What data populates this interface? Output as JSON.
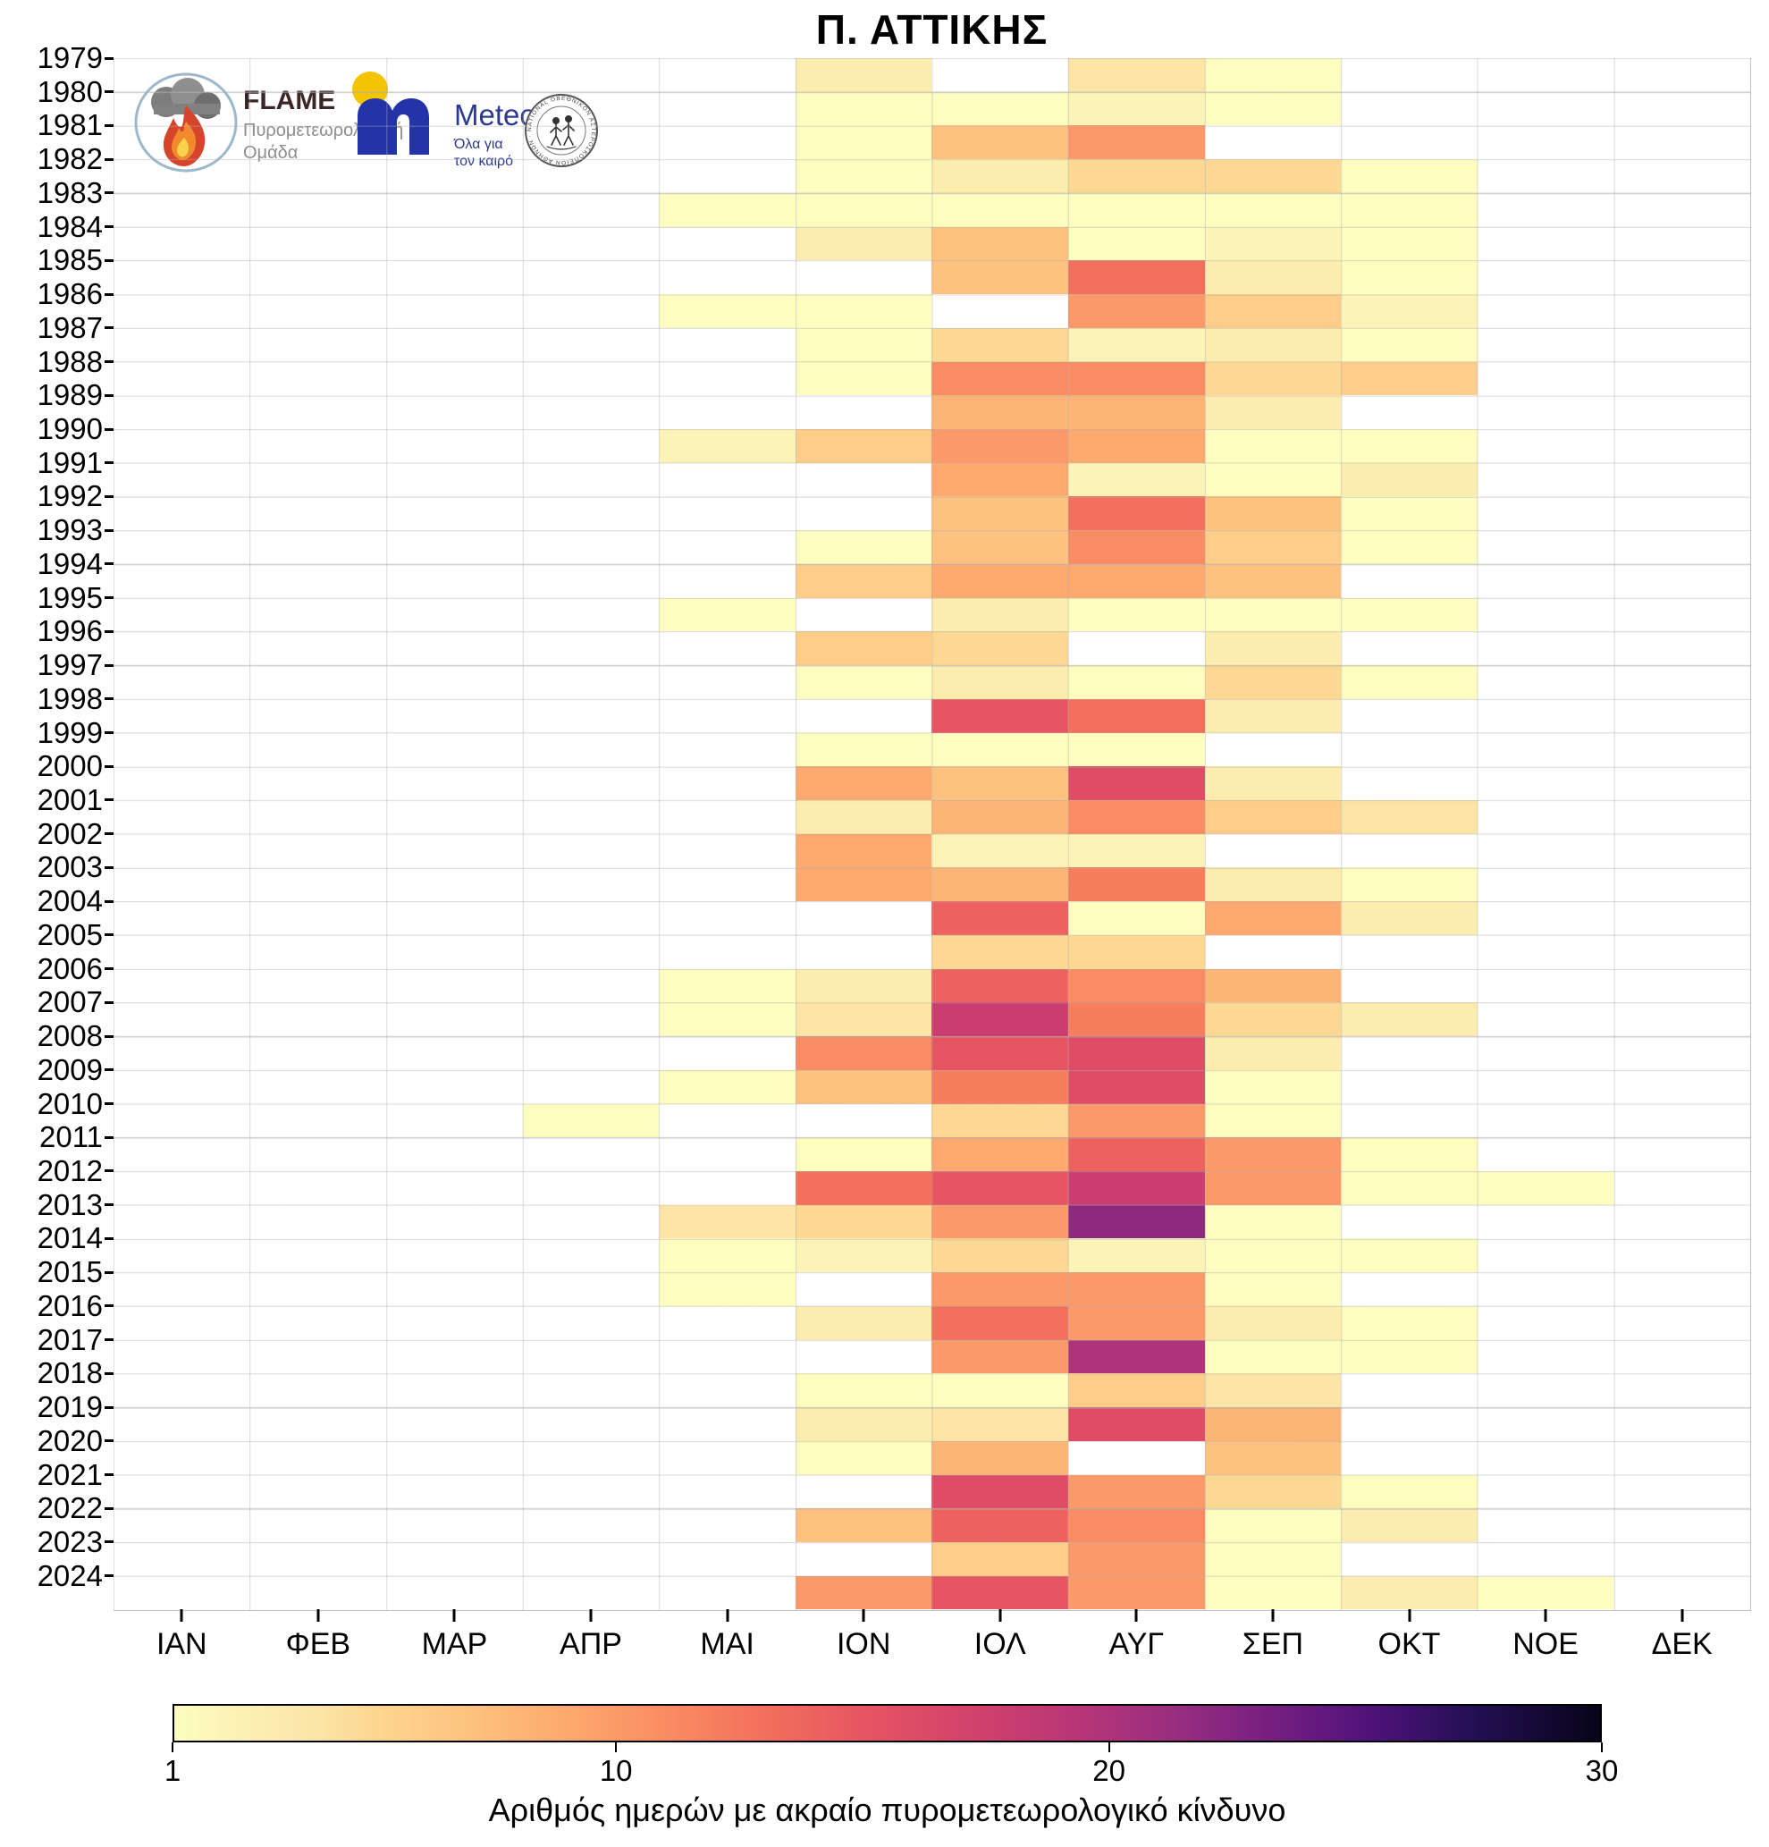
{
  "title": "Π. ΑΤΤΙΚΗΣ",
  "logos": {
    "flame": {
      "name": "FLAME",
      "subtitle_line1": "Πυρομετεωρολογική",
      "subtitle_line2": "Ομάδα"
    },
    "meteo": {
      "name": "Meteo",
      "subtitle_line1": "Όλα για",
      "subtitle_line2": "τον καιρό"
    },
    "observatory": {
      "rim_text": "ΕΘΝΙΚΟΝ ΑΣΤΕΡΟΣΚΟΠΕΙΟΝ ΑΘΗΝΩΝ · NATIONAL OBSERVATORY ATHENS ·"
    }
  },
  "chart_data": {
    "type": "heatmap",
    "title": "Π. ΑΤΤΙΚΗΣ",
    "xlabel": "",
    "ylabel": "",
    "months": [
      "ΙΑΝ",
      "ΦΕΒ",
      "ΜΑΡ",
      "ΑΠΡ",
      "ΜΑΙ",
      "ΙΟΝ",
      "ΙΟΛ",
      "ΑΥΓ",
      "ΣΕΠ",
      "ΟΚΤ",
      "ΝΟΕ",
      "ΔΕΚ"
    ],
    "years": [
      1979,
      1980,
      1981,
      1982,
      1983,
      1984,
      1985,
      1986,
      1987,
      1988,
      1989,
      1990,
      1991,
      1992,
      1993,
      1994,
      1995,
      1996,
      1997,
      1998,
      1999,
      2000,
      2001,
      2002,
      2003,
      2004,
      2005,
      2006,
      2007,
      2008,
      2009,
      2010,
      2011,
      2012,
      2013,
      2014,
      2015,
      2016,
      2017,
      2018,
      2019,
      2020,
      2021,
      2022,
      2023,
      2024
    ],
    "values": [
      [
        null,
        null,
        null,
        null,
        null,
        3,
        null,
        4,
        1,
        null,
        null,
        null
      ],
      [
        null,
        null,
        null,
        null,
        null,
        1,
        1,
        2,
        1,
        null,
        null,
        null
      ],
      [
        null,
        null,
        null,
        null,
        null,
        1,
        7,
        10,
        null,
        null,
        null,
        null
      ],
      [
        null,
        null,
        null,
        null,
        null,
        1,
        3,
        5,
        5,
        1,
        null,
        null
      ],
      [
        null,
        null,
        null,
        null,
        1,
        1,
        1,
        1,
        1,
        1,
        null,
        null
      ],
      [
        null,
        null,
        null,
        null,
        null,
        3,
        7,
        1,
        2,
        1,
        null,
        null
      ],
      [
        null,
        null,
        null,
        null,
        null,
        null,
        7,
        13,
        3,
        1,
        null,
        null
      ],
      [
        null,
        null,
        null,
        null,
        1,
        1,
        null,
        10,
        6,
        2,
        null,
        null
      ],
      [
        null,
        null,
        null,
        null,
        null,
        1,
        5,
        2,
        3,
        1,
        null,
        null
      ],
      [
        null,
        null,
        null,
        null,
        null,
        1,
        11,
        11,
        5,
        6,
        null,
        null
      ],
      [
        null,
        null,
        null,
        null,
        null,
        null,
        8,
        8,
        3,
        null,
        null,
        null
      ],
      [
        null,
        null,
        null,
        null,
        2,
        6,
        10,
        9,
        1,
        1,
        null,
        null
      ],
      [
        null,
        null,
        null,
        null,
        null,
        null,
        9,
        2,
        1,
        3,
        null,
        null
      ],
      [
        null,
        null,
        null,
        null,
        null,
        null,
        7,
        13,
        7,
        1,
        null,
        null
      ],
      [
        null,
        null,
        null,
        null,
        null,
        1,
        7,
        11,
        6,
        1,
        null,
        null
      ],
      [
        null,
        null,
        null,
        null,
        null,
        6,
        9,
        9,
        7,
        null,
        null,
        null
      ],
      [
        null,
        null,
        null,
        null,
        1,
        null,
        3,
        1,
        1,
        1,
        null,
        null
      ],
      [
        null,
        null,
        null,
        null,
        null,
        6,
        5,
        null,
        3,
        null,
        null,
        null
      ],
      [
        null,
        null,
        null,
        null,
        null,
        1,
        3,
        1,
        5,
        1,
        null,
        null
      ],
      [
        null,
        null,
        null,
        null,
        null,
        null,
        15,
        13,
        3,
        null,
        null,
        null
      ],
      [
        null,
        null,
        null,
        null,
        null,
        1,
        1,
        1,
        null,
        null,
        null,
        null
      ],
      [
        null,
        null,
        null,
        null,
        null,
        9,
        7,
        16,
        3,
        null,
        null,
        null
      ],
      [
        null,
        null,
        null,
        null,
        null,
        3,
        8,
        11,
        6,
        4,
        null,
        null
      ],
      [
        null,
        null,
        null,
        null,
        null,
        9,
        2,
        2,
        null,
        null,
        null,
        null
      ],
      [
        null,
        null,
        null,
        null,
        null,
        9,
        8,
        12,
        3,
        1,
        null,
        null
      ],
      [
        null,
        null,
        null,
        null,
        null,
        null,
        14,
        1,
        9,
        3,
        null,
        null
      ],
      [
        null,
        null,
        null,
        null,
        null,
        null,
        5,
        5,
        null,
        null,
        null,
        null
      ],
      [
        null,
        null,
        null,
        null,
        1,
        3,
        14,
        11,
        8,
        null,
        null,
        null
      ],
      [
        null,
        null,
        null,
        null,
        1,
        4,
        18,
        12,
        5,
        3,
        null,
        null
      ],
      [
        null,
        null,
        null,
        null,
        null,
        11,
        15,
        16,
        3,
        null,
        null,
        null
      ],
      [
        null,
        null,
        null,
        null,
        1,
        7,
        12,
        16,
        1,
        null,
        null,
        null
      ],
      [
        null,
        null,
        null,
        1,
        null,
        null,
        5,
        10,
        1,
        null,
        null,
        null
      ],
      [
        null,
        null,
        null,
        null,
        null,
        1,
        9,
        14,
        10,
        1,
        null,
        null
      ],
      [
        null,
        null,
        null,
        null,
        null,
        13,
        15,
        18,
        10,
        1,
        1,
        null
      ],
      [
        null,
        null,
        null,
        null,
        4,
        5,
        10,
        22,
        1,
        null,
        null,
        null
      ],
      [
        null,
        null,
        null,
        null,
        1,
        2,
        5,
        2,
        1,
        1,
        null,
        null
      ],
      [
        null,
        null,
        null,
        null,
        1,
        null,
        10,
        10,
        1,
        null,
        null,
        null
      ],
      [
        null,
        null,
        null,
        null,
        null,
        3,
        13,
        10,
        3,
        1,
        null,
        null
      ],
      [
        null,
        null,
        null,
        null,
        null,
        null,
        10,
        20,
        1,
        1,
        null,
        null
      ],
      [
        null,
        null,
        null,
        null,
        null,
        1,
        1,
        6,
        4,
        null,
        null,
        null
      ],
      [
        null,
        null,
        null,
        null,
        null,
        3,
        4,
        16,
        8,
        null,
        null,
        null
      ],
      [
        null,
        null,
        null,
        null,
        null,
        1,
        8,
        null,
        7,
        null,
        null,
        null
      ],
      [
        null,
        null,
        null,
        null,
        null,
        null,
        16,
        10,
        5,
        1,
        null,
        null
      ],
      [
        null,
        null,
        null,
        null,
        null,
        7,
        14,
        11,
        1,
        3,
        null,
        null
      ],
      [
        null,
        null,
        null,
        null,
        null,
        null,
        6,
        10,
        1,
        null,
        null,
        null
      ],
      [
        null,
        null,
        null,
        null,
        null,
        10,
        15,
        10,
        1,
        3,
        1,
        null
      ]
    ],
    "colorbar": {
      "label": "Αριθμός ημερών με ακραίο πυρομετεωρολογικό κίνδυνο",
      "min": 1,
      "max": 30,
      "ticks": [
        1,
        10,
        20,
        30
      ],
      "colormap_name": "magma_r",
      "stops": [
        [
          0.0,
          "#fcfdbf"
        ],
        [
          0.05,
          "#fcf0b2"
        ],
        [
          0.1,
          "#fbe5a7"
        ],
        [
          0.14,
          "#fdd791"
        ],
        [
          0.21,
          "#fdc17f"
        ],
        [
          0.28,
          "#fda76e"
        ],
        [
          0.35,
          "#f98a61"
        ],
        [
          0.42,
          "#f26d5c"
        ],
        [
          0.49,
          "#e55363"
        ],
        [
          0.56,
          "#d2426b"
        ],
        [
          0.63,
          "#b93677"
        ],
        [
          0.7,
          "#9a2e80"
        ],
        [
          0.77,
          "#761f81"
        ],
        [
          0.84,
          "#4f1279"
        ],
        [
          0.91,
          "#241055"
        ],
        [
          1.0,
          "#070419"
        ]
      ]
    },
    "layout": {
      "grid": true,
      "legend_position": "bottom-colorbar",
      "x_axis_side": "bottom",
      "y_axis_side": "left"
    }
  }
}
